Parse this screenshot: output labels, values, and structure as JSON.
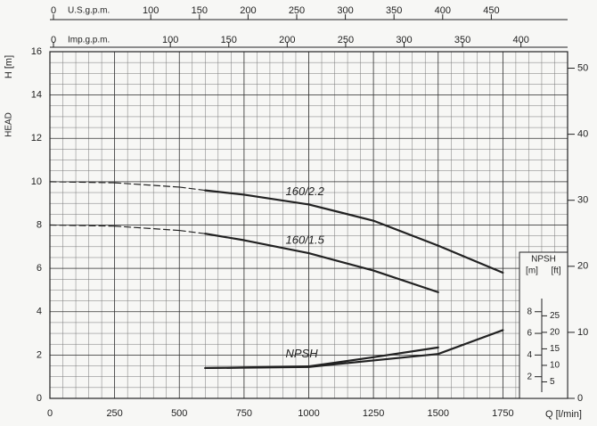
{
  "chart_data": {
    "type": "line",
    "x_label": "Q [l/min]",
    "y_label": "H [m]",
    "y_title": "HEAD",
    "xlim": [
      0,
      2000
    ],
    "xticks": [
      0,
      250,
      500,
      750,
      1000,
      1250,
      1500,
      1750
    ],
    "ylim": [
      0,
      16
    ],
    "yticks": [
      0,
      2,
      4,
      6,
      8,
      10,
      12,
      14,
      16
    ],
    "y2lim": [
      0,
      52.5
    ],
    "y2ticks": [
      0,
      10,
      20,
      30,
      40,
      50
    ],
    "grid": true,
    "top_axes": [
      {
        "label": "U.S.g.p.m.",
        "lim": [
          0,
          528.4
        ],
        "ticks": [
          0,
          100,
          150,
          200,
          250,
          300,
          350,
          400,
          450
        ]
      },
      {
        "label": "Imp.g.p.m.",
        "lim": [
          0,
          439.9
        ],
        "ticks": [
          0,
          100,
          150,
          200,
          250,
          300,
          350,
          400
        ]
      }
    ],
    "npsh_axis": {
      "title": "NPSH",
      "m_label": "[m]",
      "ft_label": "[ft]",
      "m_lim": [
        0,
        32
      ],
      "m_ticks": [
        2,
        4,
        6,
        8
      ],
      "ft_lim": [
        0,
        105
      ],
      "ft_ticks": [
        5,
        10,
        15,
        20,
        25
      ]
    },
    "series": [
      {
        "name": "160/2.2",
        "color": "#222",
        "x": [
          0,
          250,
          500,
          600,
          750,
          1000,
          1250,
          1500,
          1750
        ],
        "values": [
          10,
          9.95,
          9.75,
          9.6,
          9.4,
          8.95,
          8.2,
          7.05,
          5.8
        ],
        "line_style": [
          "dashed",
          "dashed",
          "dashed",
          "solid",
          "solid",
          "solid",
          "solid",
          "solid",
          "solid"
        ]
      },
      {
        "name": "160/1.5",
        "color": "#222",
        "x": [
          0,
          250,
          500,
          600,
          750,
          1000,
          1250,
          1500
        ],
        "values": [
          8,
          7.95,
          7.75,
          7.6,
          7.3,
          6.7,
          5.9,
          4.9
        ],
        "line_style": [
          "dashed",
          "dashed",
          "dashed",
          "solid",
          "solid",
          "solid",
          "solid",
          "solid"
        ]
      },
      {
        "name": "NPSH",
        "color": "#222",
        "axis": "npsh",
        "x": [
          600,
          1000,
          1250,
          1500,
          1750
        ],
        "values": [
          2.8,
          2.9,
          3.5,
          4.1,
          6.3
        ],
        "line_style": [
          "solid",
          "solid",
          "solid",
          "solid",
          "solid"
        ]
      },
      {
        "name": "NPSH",
        "color": "#222",
        "axis": "npsh",
        "x": [
          600,
          1000,
          1250,
          1500
        ],
        "values": [
          2.8,
          2.95,
          3.8,
          4.7
        ],
        "line_style": [
          "solid",
          "solid",
          "solid",
          "solid"
        ]
      }
    ]
  }
}
